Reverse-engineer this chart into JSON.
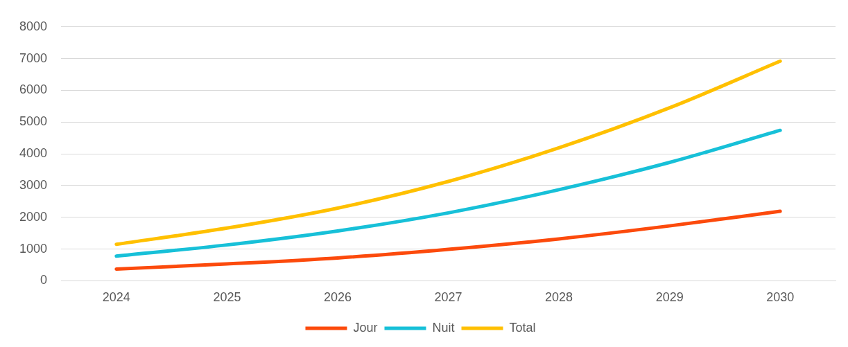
{
  "chart_data": {
    "type": "line",
    "categories": [
      "2024",
      "2025",
      "2026",
      "2027",
      "2028",
      "2029",
      "2030"
    ],
    "series": [
      {
        "name": "Jour",
        "color": "#fc4a0c",
        "values": [
          370,
          530,
          720,
          990,
          1320,
          1730,
          2190
        ]
      },
      {
        "name": "Nuit",
        "color": "#17c0d8",
        "values": [
          780,
          1130,
          1570,
          2140,
          2870,
          3730,
          4740
        ]
      },
      {
        "name": "Total",
        "color": "#ffc000",
        "values": [
          1150,
          1660,
          2290,
          3130,
          4190,
          5450,
          6920
        ]
      }
    ],
    "ylim": [
      0,
      8000
    ],
    "yticks": [
      0,
      1000,
      2000,
      3000,
      4000,
      5000,
      6000,
      7000,
      8000
    ],
    "grid": "y",
    "legend": "bottom",
    "marker": "none",
    "line_style": "solid"
  }
}
